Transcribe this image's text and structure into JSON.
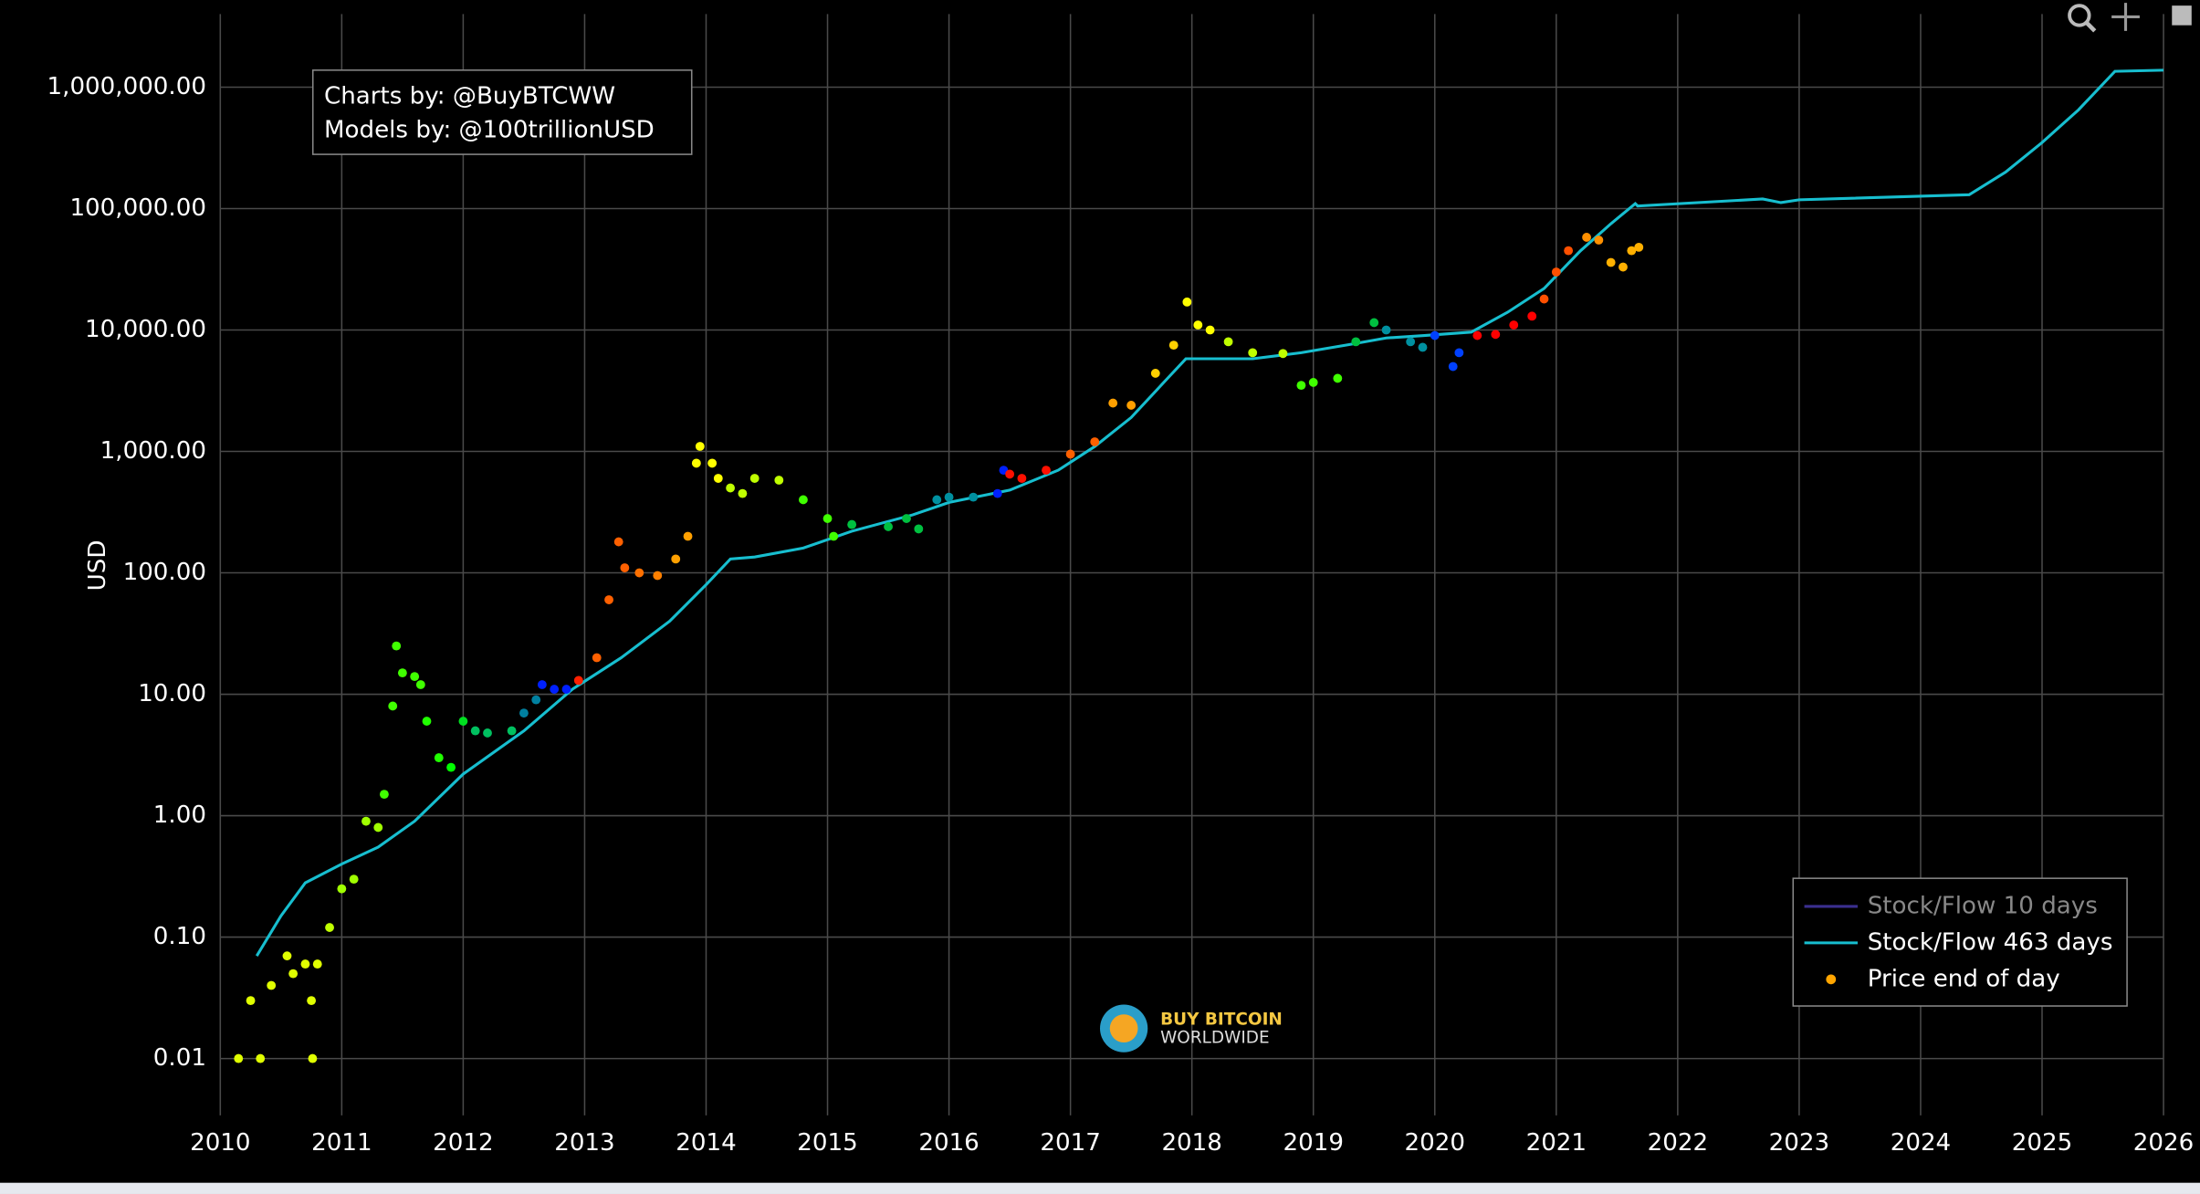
{
  "chart_data": {
    "type": "scatter",
    "ylabel": "USD",
    "xlim": [
      2010,
      2026
    ],
    "xticks": [
      2010,
      2011,
      2012,
      2013,
      2014,
      2015,
      2016,
      2017,
      2018,
      2019,
      2020,
      2021,
      2022,
      2023,
      2024,
      2025,
      2026
    ],
    "ylim": [
      0.0034,
      4000000
    ],
    "log_y": true,
    "yticks": [
      {
        "value": 0.01,
        "label": "0.01"
      },
      {
        "value": 0.1,
        "label": "0.10"
      },
      {
        "value": 1,
        "label": "1.00"
      },
      {
        "value": 10,
        "label": "10.00"
      },
      {
        "value": 100,
        "label": "100.00"
      },
      {
        "value": 1000,
        "label": "1,000.00"
      },
      {
        "value": 10000,
        "label": "10,000.00"
      },
      {
        "value": 100000,
        "label": "100,000.00"
      },
      {
        "value": 1000000,
        "label": "1,000,000.00"
      }
    ],
    "grid": true,
    "legend": "bottom-right",
    "annotations": [
      "Charts by: @BuyBTCWW",
      "Models by: @100trillionUSD"
    ],
    "logo": [
      "BUY BITCOIN",
      "WORLDWIDE"
    ],
    "series": [
      {
        "name": "Stock/Flow 10 days",
        "mode": "lines",
        "color": "#3b2f8f",
        "visible": false
      },
      {
        "name": "Stock/Flow 463 days",
        "mode": "lines",
        "color": "#17becf",
        "visible": true,
        "x": [
          2010.3,
          2010.5,
          2010.7,
          2011.0,
          2011.3,
          2011.6,
          2012.0,
          2012.5,
          2012.9,
          2013.3,
          2013.7,
          2014.0,
          2014.2,
          2014.4,
          2014.8,
          2015.2,
          2015.7,
          2016.0,
          2016.5,
          2016.9,
          2017.2,
          2017.5,
          2017.8,
          2017.95,
          2018.5,
          2018.9,
          2019.3,
          2019.6,
          2019.9,
          2020.3,
          2020.6,
          2020.9,
          2021.2,
          2021.45,
          2021.65,
          2021.67,
          2022.7,
          2022.85,
          2023.0,
          2024.4,
          2024.7,
          2025.0,
          2025.3,
          2025.6,
          2026.0
        ],
        "values": [
          0.07,
          0.15,
          0.28,
          0.4,
          0.55,
          0.9,
          2.2,
          5,
          11,
          20,
          40,
          80,
          130,
          135,
          160,
          220,
          300,
          380,
          480,
          700,
          1100,
          1900,
          4000,
          5800,
          5800,
          6500,
          7600,
          8600,
          9000,
          9600,
          14000,
          22000,
          45000,
          75000,
          110000,
          105000,
          120000,
          112000,
          118000,
          130000,
          200000,
          350000,
          650000,
          1350000,
          1380000
        ]
      },
      {
        "name": "Price end of day",
        "mode": "markers",
        "color": "#ffa500",
        "visible": true,
        "x": [
          2010.15,
          2010.25,
          2010.33,
          2010.42,
          2010.55,
          2010.6,
          2010.7,
          2010.75,
          2010.8,
          2010.76,
          2010.9,
          2011.0,
          2011.1,
          2011.2,
          2011.3,
          2011.35,
          2011.42,
          2011.45,
          2011.5,
          2011.6,
          2011.65,
          2011.7,
          2011.8,
          2011.9,
          2012.0,
          2012.1,
          2012.2,
          2012.4,
          2012.5,
          2012.6,
          2012.65,
          2012.75,
          2012.85,
          2012.95,
          2013.1,
          2013.2,
          2013.28,
          2013.33,
          2013.45,
          2013.6,
          2013.75,
          2013.85,
          2013.92,
          2013.95,
          2014.05,
          2014.1,
          2014.2,
          2014.3,
          2014.4,
          2014.6,
          2014.8,
          2015.0,
          2015.05,
          2015.2,
          2015.5,
          2015.65,
          2015.75,
          2015.9,
          2016.0,
          2016.2,
          2016.4,
          2016.45,
          2016.5,
          2016.6,
          2016.8,
          2017.0,
          2017.2,
          2017.35,
          2017.5,
          2017.7,
          2017.85,
          2017.96,
          2018.05,
          2018.15,
          2018.3,
          2018.5,
          2018.75,
          2018.9,
          2019.0,
          2019.2,
          2019.35,
          2019.5,
          2019.6,
          2019.8,
          2019.9,
          2020.0,
          2020.15,
          2020.2,
          2020.35,
          2020.5,
          2020.65,
          2020.8,
          2020.9,
          2021.0,
          2021.1,
          2021.25,
          2021.35,
          2021.45,
          2021.55,
          2021.62,
          2021.68
        ],
        "values": [
          0.01,
          0.03,
          0.01,
          0.04,
          0.07,
          0.05,
          0.06,
          0.03,
          0.06,
          0.01,
          0.12,
          0.25,
          0.3,
          0.9,
          0.8,
          1.5,
          8,
          25,
          15,
          14,
          12,
          6,
          3,
          2.5,
          6,
          5,
          4.8,
          5,
          7,
          9,
          12,
          11,
          11,
          13,
          20,
          60,
          180,
          110,
          100,
          95,
          130,
          200,
          800,
          1100,
          800,
          600,
          500,
          450,
          600,
          580,
          400,
          280,
          200,
          250,
          240,
          280,
          230,
          400,
          420,
          420,
          450,
          700,
          650,
          600,
          700,
          950,
          1200,
          2500,
          2400,
          4400,
          7500,
          17000,
          11000,
          10000,
          8000,
          6500,
          6400,
          3500,
          3700,
          4000,
          8000,
          11500,
          10000,
          8000,
          7200,
          9000,
          5000,
          6500,
          9000,
          9200,
          11000,
          13000,
          18000,
          30000,
          45000,
          58000,
          55000,
          36000,
          33000,
          45000,
          48000
        ],
        "colors": [
          "#e0ff00",
          "#e0ff00",
          "#e0ff00",
          "#e0ff00",
          "#e0ff00",
          "#e0ff00",
          "#e0ff00",
          "#e0ff00",
          "#e0ff00",
          "#e0ff00",
          "#c0ff00",
          "#a0ff00",
          "#a0ff00",
          "#a0ff00",
          "#a0ff00",
          "#40ff00",
          "#40ff00",
          "#40ff00",
          "#40ff00",
          "#40ff00",
          "#40ff00",
          "#20ff00",
          "#20ff00",
          "#00ff00",
          "#00e020",
          "#00c060",
          "#00c060",
          "#00c060",
          "#0080a0",
          "#0080a0",
          "#0020ff",
          "#0020ff",
          "#0020ff",
          "#ff2000",
          "#ff6000",
          "#ff6000",
          "#ff6000",
          "#ff6000",
          "#ff7000",
          "#ff8000",
          "#ffa000",
          "#ffa000",
          "#ffff00",
          "#ffff00",
          "#ffff00",
          "#ffff00",
          "#c0ff00",
          "#c0ff00",
          "#c0ff00",
          "#c0ff00",
          "#40ff00",
          "#40ff00",
          "#40ff00",
          "#00c040",
          "#00c040",
          "#00c040",
          "#00c040",
          "#0090a0",
          "#0090a0",
          "#0090a0",
          "#0020ff",
          "#0020ff",
          "#ff1000",
          "#ff1000",
          "#ff1000",
          "#ff6000",
          "#ff6000",
          "#ffa000",
          "#ffa000",
          "#ffd000",
          "#ffd000",
          "#ffff00",
          "#ffff00",
          "#ffff00",
          "#c0ff00",
          "#c0ff00",
          "#c0ff00",
          "#40ff00",
          "#40ff00",
          "#40ff00",
          "#00c040",
          "#00c040",
          "#0090a0",
          "#0090a0",
          "#0090a0",
          "#0040ff",
          "#0040ff",
          "#0040ff",
          "#ff0000",
          "#ff0000",
          "#ff0000",
          "#ff0000",
          "#ff5000",
          "#ff5000",
          "#ff5000",
          "#ff9000",
          "#ff9000",
          "#ffb000",
          "#ffb000",
          "#ffb000",
          "#ffb000"
        ]
      }
    ]
  }
}
